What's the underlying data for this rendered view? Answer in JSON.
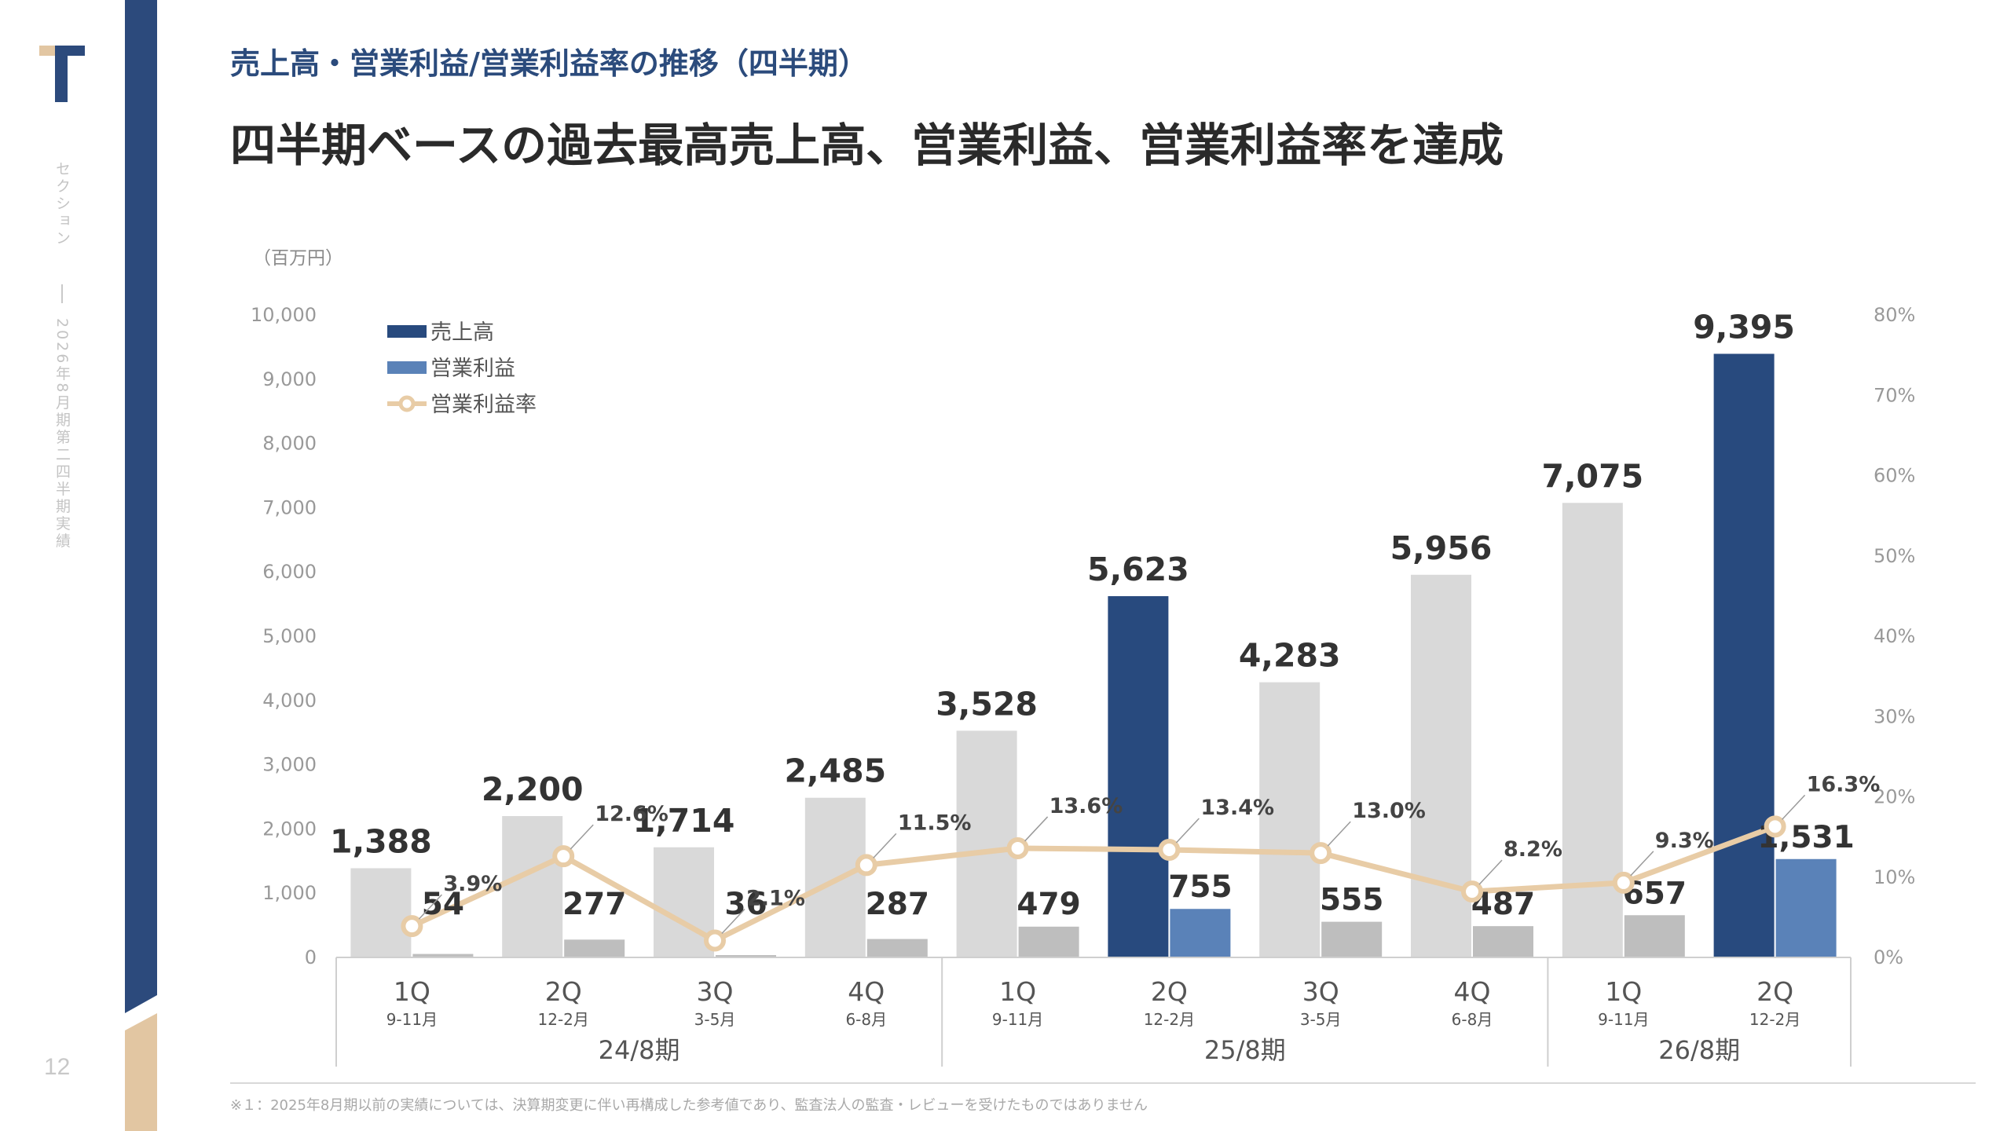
{
  "page": {
    "subtitle": "売上高・営業利益/営業利益率の推移（四半期）",
    "headline": "四半期ベースの過去最高売上高、営業利益、営業利益率を達成",
    "section_label": "セクション",
    "report_label": "2026年8月期第二四半期実績",
    "page_number": "12",
    "footnote": "※１：2025年8月期以前の実績については、決算期変更に伴い再構成した参考値であり、監査法人の監査・レビューを受けたものではありません"
  },
  "colors": {
    "brand_navy": "#2c4a7c",
    "revenue_highlight": "#284a7e",
    "op_income_highlight": "#5a82b8",
    "revenue_past": "#d9d9d9",
    "op_income_past": "#bebebe",
    "margin_line": "#e8cca6",
    "accent_tan": "#e2c6a2"
  },
  "chart_data": {
    "type": "bar",
    "unit_label": "（百万円）",
    "categories": [
      "1Q",
      "2Q",
      "3Q",
      "4Q",
      "1Q",
      "2Q",
      "3Q",
      "4Q",
      "1Q",
      "2Q"
    ],
    "months": [
      "9-11月",
      "12-2月",
      "3-5月",
      "6-8月",
      "9-11月",
      "12-2月",
      "3-5月",
      "6-8月",
      "9-11月",
      "12-2月"
    ],
    "fiscal_years": [
      {
        "label": "24/8期",
        "count": 4
      },
      {
        "label": "25/8期",
        "count": 4
      },
      {
        "label": "26/8期",
        "count": 2
      }
    ],
    "highlighted": [
      false,
      false,
      false,
      false,
      false,
      true,
      false,
      false,
      false,
      true
    ],
    "series": [
      {
        "name": "売上高",
        "type": "bar",
        "values": [
          1388,
          2200,
          1714,
          2485,
          3528,
          5623,
          4283,
          5956,
          7075,
          9395
        ]
      },
      {
        "name": "営業利益",
        "type": "bar",
        "values": [
          54,
          277,
          36,
          287,
          479,
          755,
          555,
          487,
          657,
          1531
        ]
      },
      {
        "name": "営業利益率",
        "type": "line",
        "axis": "right",
        "values": [
          3.9,
          12.6,
          2.1,
          11.5,
          13.6,
          13.4,
          13.0,
          8.2,
          9.3,
          16.3
        ]
      }
    ],
    "value_labels": {
      "revenue": [
        "1,388",
        "2,200",
        "1,714",
        "2,485",
        "3,528",
        "5,623",
        "4,283",
        "5,956",
        "7,075",
        "9,395"
      ],
      "op_income": [
        "54",
        "277",
        "36",
        "287",
        "479",
        "755",
        "555",
        "487",
        "657",
        "1,531"
      ],
      "margin": [
        "3.9%",
        "12.6%",
        "2.1%",
        "11.5%",
        "13.6%",
        "13.4%",
        "13.0%",
        "8.2%",
        "9.3%",
        "16.3%"
      ]
    },
    "y_left": {
      "min": 0,
      "max": 10000,
      "ticks": [
        "0",
        "1,000",
        "2,000",
        "3,000",
        "4,000",
        "5,000",
        "6,000",
        "7,000",
        "8,000",
        "9,000",
        "10,000"
      ]
    },
    "y_right": {
      "min": 0,
      "max": 80,
      "ticks": [
        "0%",
        "10%",
        "20%",
        "30%",
        "40%",
        "50%",
        "60%",
        "70%",
        "80%"
      ]
    },
    "grid": false,
    "legend_position": "top-left"
  }
}
